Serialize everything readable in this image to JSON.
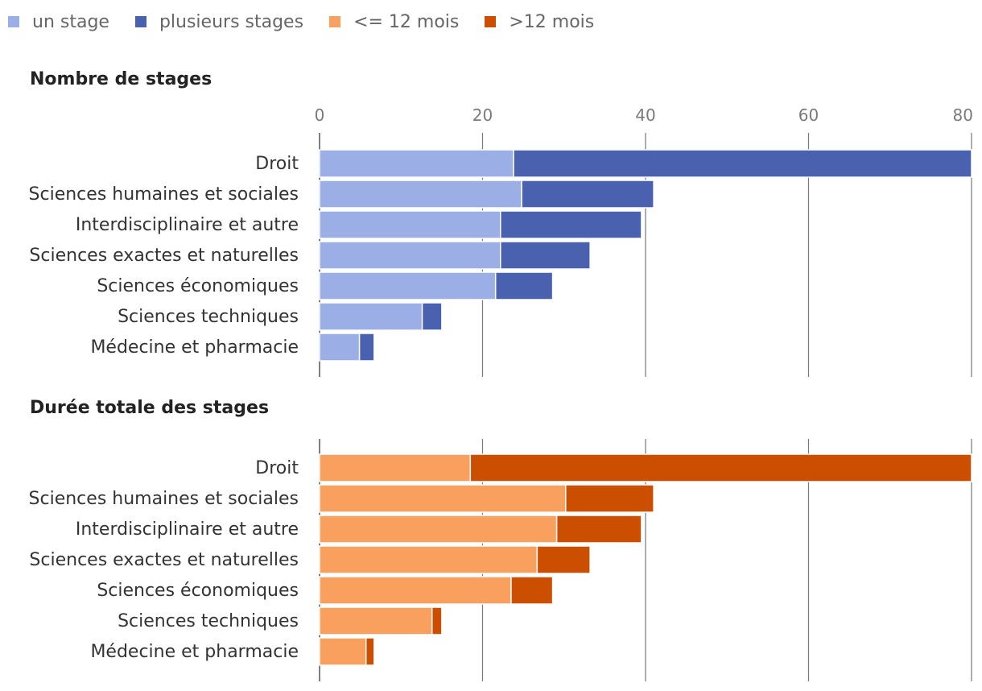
{
  "legend": [
    {
      "label": "un stage",
      "color": "#9baee6"
    },
    {
      "label": "plusieurs stages",
      "color": "#4a61b0"
    },
    {
      "label": "<= 12 mois",
      "color": "#f9a05e"
    },
    {
      "label": ">12 mois",
      "color": "#cc4e00"
    }
  ],
  "chart_data": [
    {
      "type": "bar",
      "orientation": "horizontal",
      "stacked": true,
      "title": "Nombre de stages",
      "xlim": [
        0,
        80
      ],
      "ticks": [
        0,
        20,
        40,
        60,
        80
      ],
      "tick_labels": [
        "0",
        "20",
        "40",
        "60",
        "80"
      ],
      "show_tick_labels": true,
      "grid": true,
      "categories": [
        "Droit",
        "Sciences humaines et sociales",
        "Interdisciplinaire et autre",
        "Sciences exactes et naturelles",
        "Sciences économiques",
        "Sciences techniques",
        "Médecine et pharmacie"
      ],
      "series": [
        {
          "name": "un stage",
          "color": "#9baee6",
          "values": [
            23.8,
            24.8,
            22.2,
            22.2,
            21.6,
            12.6,
            4.9
          ]
        },
        {
          "name": "plusieurs stages",
          "color": "#4a61b0",
          "values": [
            56.2,
            16.2,
            17.3,
            11.0,
            7.0,
            2.4,
            1.8
          ]
        }
      ]
    },
    {
      "type": "bar",
      "orientation": "horizontal",
      "stacked": true,
      "title": "Durée totale des stages",
      "xlim": [
        0,
        80
      ],
      "ticks": [
        0,
        20,
        40,
        60,
        80
      ],
      "tick_labels": [],
      "show_tick_labels": false,
      "grid": true,
      "categories": [
        "Droit",
        "Sciences humaines et sociales",
        "Interdisciplinaire et autre",
        "Sciences exactes et naturelles",
        "Sciences économiques",
        "Sciences techniques",
        "Médecine et pharmacie"
      ],
      "series": [
        {
          "name": "<= 12 mois",
          "color": "#f9a05e",
          "values": [
            18.5,
            30.2,
            29.1,
            26.7,
            23.5,
            13.8,
            5.7
          ]
        },
        {
          "name": ">12 mois",
          "color": "#cc4e00",
          "values": [
            61.5,
            10.8,
            10.4,
            6.5,
            5.1,
            1.2,
            1.0
          ]
        }
      ]
    }
  ]
}
